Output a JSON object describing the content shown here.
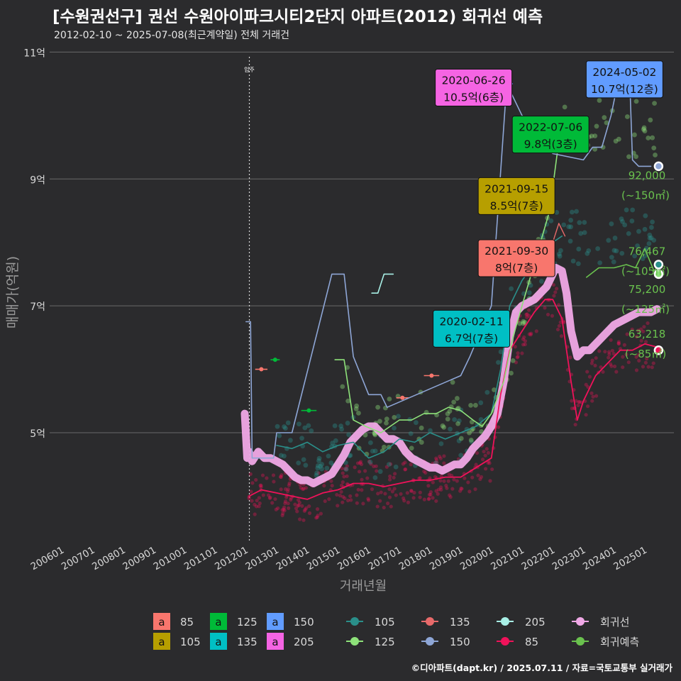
{
  "title": "[수원권선구] 권선 수원아이파크시티2단지 아파트(2012) 회귀선 예측",
  "subtitle": "2012-02-10 ~ 2025-07-08(최근계약일) 전체 거래건",
  "caption": "©디아파트(dapt.kr) / 2025.07.11 / 자료=국토교통부 실거래가",
  "colors": {
    "85": "#f8766d",
    "105": "#b79f00",
    "125": "#00ba38",
    "135": "#00bfc4",
    "150": "#619cff",
    "205": "#f564e3",
    "line_85": "#f0125a",
    "line_105": "#2a8f8a",
    "line_125": "#8ee27a",
    "line_135": "#e86a6a",
    "line_150": "#8ea6d6",
    "line_205": "#a8f0e6",
    "regression": "#f0a8e6",
    "forecast": "#6ac24e"
  },
  "chart_data": {
    "type": "line",
    "xlabel": "거래년월",
    "ylabel": "매매가(억원)",
    "x_ticks": [
      "200601",
      "200701",
      "200801",
      "200901",
      "201001",
      "201101",
      "201201",
      "201301",
      "201401",
      "201501",
      "201601",
      "201701",
      "201801",
      "201901",
      "202001",
      "202101",
      "202201",
      "202301",
      "202401",
      "202501"
    ],
    "y_ticks": [
      {
        "v": 5,
        "label": "5억"
      },
      {
        "v": 7,
        "label": "7억"
      },
      {
        "v": 9,
        "label": "9억"
      },
      {
        "v": 11,
        "label": "11억"
      }
    ],
    "xlim": [
      2005.6,
      2025.95
    ],
    "ylim": [
      3.3,
      11.15
    ],
    "grid": true,
    "vline": {
      "x": 2012.11,
      "label": "입주"
    },
    "series": [
      {
        "name": "회귀선",
        "key": "regression",
        "width": 11,
        "points": [
          [
            2011.96,
            5.3
          ],
          [
            2012.04,
            4.6
          ],
          [
            2012.1,
            4.7
          ],
          [
            2012.2,
            4.55
          ],
          [
            2012.4,
            4.7
          ],
          [
            2012.6,
            4.6
          ],
          [
            2012.8,
            4.6
          ],
          [
            2013.0,
            4.55
          ],
          [
            2013.2,
            4.5
          ],
          [
            2013.4,
            4.4
          ],
          [
            2013.6,
            4.3
          ],
          [
            2013.8,
            4.25
          ],
          [
            2014.0,
            4.25
          ],
          [
            2014.2,
            4.2
          ],
          [
            2014.4,
            4.25
          ],
          [
            2014.6,
            4.3
          ],
          [
            2014.8,
            4.35
          ],
          [
            2015.0,
            4.5
          ],
          [
            2015.2,
            4.65
          ],
          [
            2015.4,
            4.85
          ],
          [
            2015.6,
            4.95
          ],
          [
            2015.8,
            5.05
          ],
          [
            2016.0,
            5.1
          ],
          [
            2016.2,
            5.1
          ],
          [
            2016.4,
            5.0
          ],
          [
            2016.6,
            4.9
          ],
          [
            2016.8,
            4.9
          ],
          [
            2017.0,
            4.85
          ],
          [
            2017.2,
            4.7
          ],
          [
            2017.4,
            4.6
          ],
          [
            2017.6,
            4.55
          ],
          [
            2017.8,
            4.5
          ],
          [
            2018.0,
            4.45
          ],
          [
            2018.2,
            4.45
          ],
          [
            2018.4,
            4.4
          ],
          [
            2018.6,
            4.45
          ],
          [
            2018.8,
            4.5
          ],
          [
            2019.0,
            4.5
          ],
          [
            2019.2,
            4.6
          ],
          [
            2019.4,
            4.75
          ],
          [
            2019.6,
            4.85
          ],
          [
            2019.8,
            4.95
          ],
          [
            2020.0,
            5.1
          ],
          [
            2020.2,
            5.3
          ],
          [
            2020.4,
            5.8
          ],
          [
            2020.6,
            6.5
          ],
          [
            2020.8,
            6.9
          ],
          [
            2021.0,
            7.0
          ],
          [
            2021.2,
            7.05
          ],
          [
            2021.4,
            7.1
          ],
          [
            2021.6,
            7.2
          ],
          [
            2021.8,
            7.3
          ],
          [
            2022.0,
            7.5
          ],
          [
            2022.1,
            7.6
          ],
          [
            2022.3,
            7.55
          ],
          [
            2022.45,
            7.2
          ],
          [
            2022.6,
            6.6
          ],
          [
            2022.8,
            6.2
          ],
          [
            2023.0,
            6.3
          ],
          [
            2023.2,
            6.3
          ],
          [
            2023.4,
            6.4
          ],
          [
            2023.6,
            6.5
          ],
          [
            2023.8,
            6.6
          ],
          [
            2024.0,
            6.7
          ],
          [
            2024.2,
            6.75
          ],
          [
            2024.4,
            6.8
          ],
          [
            2024.6,
            6.85
          ],
          [
            2024.8,
            6.9
          ],
          [
            2025.0,
            6.9
          ],
          [
            2025.2,
            6.9
          ],
          [
            2025.4,
            6.95
          ]
        ]
      },
      {
        "name": "85",
        "key": "line_85",
        "width": 1.8,
        "points": [
          [
            2012.1,
            4.0
          ],
          [
            2012.5,
            4.1
          ],
          [
            2013.0,
            4.05
          ],
          [
            2013.5,
            4.0
          ],
          [
            2014.0,
            3.95
          ],
          [
            2014.5,
            4.05
          ],
          [
            2015.0,
            4.1
          ],
          [
            2015.5,
            4.2
          ],
          [
            2016.0,
            4.2
          ],
          [
            2016.5,
            4.15
          ],
          [
            2017.0,
            4.2
          ],
          [
            2017.5,
            4.25
          ],
          [
            2018.0,
            4.25
          ],
          [
            2018.5,
            4.3
          ],
          [
            2019.0,
            4.3
          ],
          [
            2019.5,
            4.45
          ],
          [
            2020.0,
            4.6
          ],
          [
            2020.3,
            5.6
          ],
          [
            2020.6,
            6.3
          ],
          [
            2021.0,
            6.6
          ],
          [
            2021.4,
            6.9
          ],
          [
            2021.75,
            7.1
          ],
          [
            2022.0,
            7.1
          ],
          [
            2022.3,
            6.8
          ],
          [
            2022.6,
            5.8
          ],
          [
            2022.8,
            5.2
          ],
          [
            2023.0,
            5.5
          ],
          [
            2023.4,
            5.9
          ],
          [
            2023.8,
            6.1
          ],
          [
            2024.2,
            6.3
          ],
          [
            2024.6,
            6.3
          ],
          [
            2025.0,
            6.4
          ],
          [
            2025.4,
            6.35
          ]
        ]
      },
      {
        "name": "105",
        "key": "line_105",
        "width": 1.6,
        "points": [
          [
            2013.0,
            4.8
          ],
          [
            2013.5,
            4.75
          ],
          [
            2014.0,
            4.85
          ],
          [
            2014.5,
            4.7
          ],
          [
            2015.0,
            4.8
          ],
          [
            2015.5,
            4.85
          ],
          [
            2016.0,
            4.6
          ],
          [
            2016.5,
            4.7
          ],
          [
            2017.0,
            4.9
          ],
          [
            2017.5,
            4.85
          ],
          [
            2018.0,
            5.0
          ],
          [
            2018.5,
            4.9
          ],
          [
            2019.0,
            5.0
          ],
          [
            2019.5,
            5.1
          ],
          [
            2020.0,
            5.3
          ],
          [
            2020.3,
            6.0
          ],
          [
            2020.6,
            7.0
          ],
          [
            2021.0,
            7.4
          ],
          [
            2021.3,
            7.6
          ],
          [
            2021.6,
            7.8
          ],
          [
            2022.0,
            8.0
          ],
          [
            2022.3,
            8.1
          ]
        ]
      },
      {
        "name": "125",
        "key": "line_125",
        "width": 1.6,
        "points": [
          [
            2014.9,
            6.15
          ],
          [
            2015.2,
            6.15
          ],
          [
            2015.5,
            5.2
          ],
          [
            2015.9,
            5.1
          ],
          [
            2016.4,
            5.0
          ],
          [
            2017.0,
            5.2
          ],
          [
            2017.4,
            5.2
          ],
          [
            2017.8,
            5.3
          ],
          [
            2018.2,
            5.3
          ],
          [
            2018.6,
            5.4
          ],
          [
            2019.0,
            5.35
          ],
          [
            2019.4,
            5.2
          ],
          [
            2019.7,
            5.1
          ],
          [
            2020.0,
            5.3
          ],
          [
            2020.4,
            5.8
          ],
          [
            2020.7,
            6.5
          ],
          [
            2021.0,
            7.0
          ],
          [
            2021.3,
            7.5
          ],
          [
            2021.6,
            8.0
          ],
          [
            2021.9,
            8.5
          ],
          [
            2022.2,
            9.6
          ],
          [
            2022.6,
            9.8
          ]
        ]
      },
      {
        "name": "135",
        "key": "line_135",
        "width": 1.4,
        "points": [
          [
            2021.7,
            7.9
          ],
          [
            2022.0,
            8.0
          ],
          [
            2022.2,
            8.3
          ],
          [
            2022.4,
            8.1
          ]
        ]
      },
      {
        "name": "150",
        "key": "line_150",
        "width": 1.6,
        "points": [
          [
            2012.0,
            6.75
          ],
          [
            2012.15,
            6.75
          ],
          [
            2012.2,
            4.6
          ],
          [
            2012.9,
            4.6
          ],
          [
            2013.0,
            5.0
          ],
          [
            2013.5,
            5.0
          ],
          [
            2014.8,
            7.5
          ],
          [
            2015.2,
            7.5
          ],
          [
            2015.5,
            6.2
          ],
          [
            2016.0,
            5.6
          ],
          [
            2016.4,
            5.6
          ],
          [
            2016.6,
            5.4
          ],
          [
            2019.0,
            5.9
          ],
          [
            2019.3,
            6.2
          ],
          [
            2020.0,
            7.0
          ],
          [
            2020.5,
            10.5
          ],
          [
            2021.0,
            10.0
          ],
          [
            2022.0,
            9.4
          ],
          [
            2023.0,
            9.3
          ],
          [
            2023.3,
            9.5
          ],
          [
            2023.6,
            9.5
          ],
          [
            2023.9,
            10.0
          ],
          [
            2024.2,
            10.7
          ],
          [
            2024.5,
            10.7
          ],
          [
            2024.6,
            9.3
          ],
          [
            2024.8,
            9.2
          ],
          [
            2025.2,
            9.2
          ]
        ]
      },
      {
        "name": "205",
        "key": "line_205",
        "width": 1.6,
        "points": [
          [
            2016.1,
            7.2
          ],
          [
            2016.3,
            7.2
          ],
          [
            2016.5,
            7.5
          ],
          [
            2016.8,
            7.5
          ]
        ]
      },
      {
        "name": "회귀예측",
        "key": "forecast",
        "width": 1.6,
        "points": [
          [
            2023.1,
            7.45
          ],
          [
            2023.5,
            7.6
          ],
          [
            2024.0,
            7.6
          ],
          [
            2024.4,
            7.65
          ],
          [
            2024.7,
            7.6
          ],
          [
            2025.0,
            7.9
          ],
          [
            2025.3,
            7.55
          ],
          [
            2025.4,
            7.6
          ]
        ]
      }
    ],
    "segments": [
      {
        "key": "85",
        "x": [
          2012.3,
          2012.7
        ],
        "y": 6.0
      },
      {
        "key": "125",
        "x": [
          2012.8,
          2013.1
        ],
        "y": 6.15
      },
      {
        "key": "125",
        "x": [
          2013.8,
          2014.3
        ],
        "y": 5.35
      },
      {
        "key": "85",
        "x": [
          2016.9,
          2017.3
        ],
        "y": 5.55
      },
      {
        "key": "85",
        "x": [
          2017.8,
          2018.3
        ],
        "y": 5.9
      },
      {
        "key": "125",
        "x": [
          2022.3,
          2022.7
        ],
        "y": 9.8
      },
      {
        "key": "150",
        "x": [
          2020.3,
          2020.7
        ],
        "y": 10.5
      }
    ],
    "scatter": [
      {
        "key": "line_85",
        "cluster": {
          "xmin": 2012.1,
          "xmax": 2025.4,
          "noise": 0.35,
          "count": 420,
          "follows": "85"
        }
      },
      {
        "key": "line_105",
        "cluster": {
          "xmin": 2013.0,
          "xmax": 2025.4,
          "noise": 0.45,
          "count": 160,
          "follows": "105"
        }
      },
      {
        "key": "line_125",
        "cluster": {
          "xmin": 2015.0,
          "xmax": 2025.4,
          "noise": 0.45,
          "count": 120,
          "follows": "125"
        }
      }
    ],
    "end_points": [
      {
        "x": 2025.45,
        "y": 9.2,
        "key": "line_150"
      },
      {
        "x": 2025.45,
        "y": 7.65,
        "key": "line_105"
      },
      {
        "x": 2025.45,
        "y": 7.5,
        "key": "line_125"
      },
      {
        "x": 2025.45,
        "y": 6.3,
        "key": "line_85"
      }
    ],
    "forecast_labels": [
      {
        "value": "92,000",
        "area": "(~150㎡)",
        "y": 9.0
      },
      {
        "value": "76,467",
        "area": "(~105㎡)",
        "y": 7.8
      },
      {
        "value": "75,200",
        "area": "(~125㎡)",
        "y": 7.2
      },
      {
        "value": "63,218",
        "area": "(~85㎡)",
        "y": 6.5
      }
    ],
    "annotations": [
      {
        "date": "2024-05-02",
        "price": "10.7억(12층)",
        "key": "150",
        "x": 2024.34,
        "y": 10.57
      },
      {
        "date": "2020-06-26",
        "price": "10.5억(6층)",
        "key": "205",
        "x": 2019.42,
        "y": 10.44
      },
      {
        "date": "2022-07-06",
        "price": "9.8억(3층)",
        "key": "125",
        "x": 2021.93,
        "y": 9.7
      },
      {
        "date": "2021-09-15",
        "price": "8.5억(7층)",
        "key": "105",
        "x": 2020.82,
        "y": 8.73
      },
      {
        "date": "2021-09-30",
        "price": "8억(7층)",
        "key": "85",
        "x": 2020.82,
        "y": 7.75
      },
      {
        "date": "2020-02-11",
        "price": "6.7억(7층)",
        "key": "135",
        "x": 2019.35,
        "y": 6.64
      }
    ]
  },
  "legend": {
    "area_items": [
      {
        "glyph": "a",
        "label": "85",
        "key": "85"
      },
      {
        "glyph": "a",
        "label": "105",
        "key": "105"
      },
      {
        "glyph": "a",
        "label": "125",
        "key": "125"
      },
      {
        "glyph": "a",
        "label": "135",
        "key": "135"
      },
      {
        "glyph": "a",
        "label": "150",
        "key": "150"
      },
      {
        "glyph": "a",
        "label": "205",
        "key": "205"
      }
    ],
    "line_items": [
      {
        "label": "105",
        "key": "line_105"
      },
      {
        "label": "125",
        "key": "line_125"
      },
      {
        "label": "135",
        "key": "line_135"
      },
      {
        "label": "150",
        "key": "line_150"
      },
      {
        "label": "205",
        "key": "line_205"
      },
      {
        "label": "85",
        "key": "line_85"
      },
      {
        "label": "회귀선",
        "key": "regression"
      },
      {
        "label": "회귀예측",
        "key": "forecast"
      }
    ]
  }
}
